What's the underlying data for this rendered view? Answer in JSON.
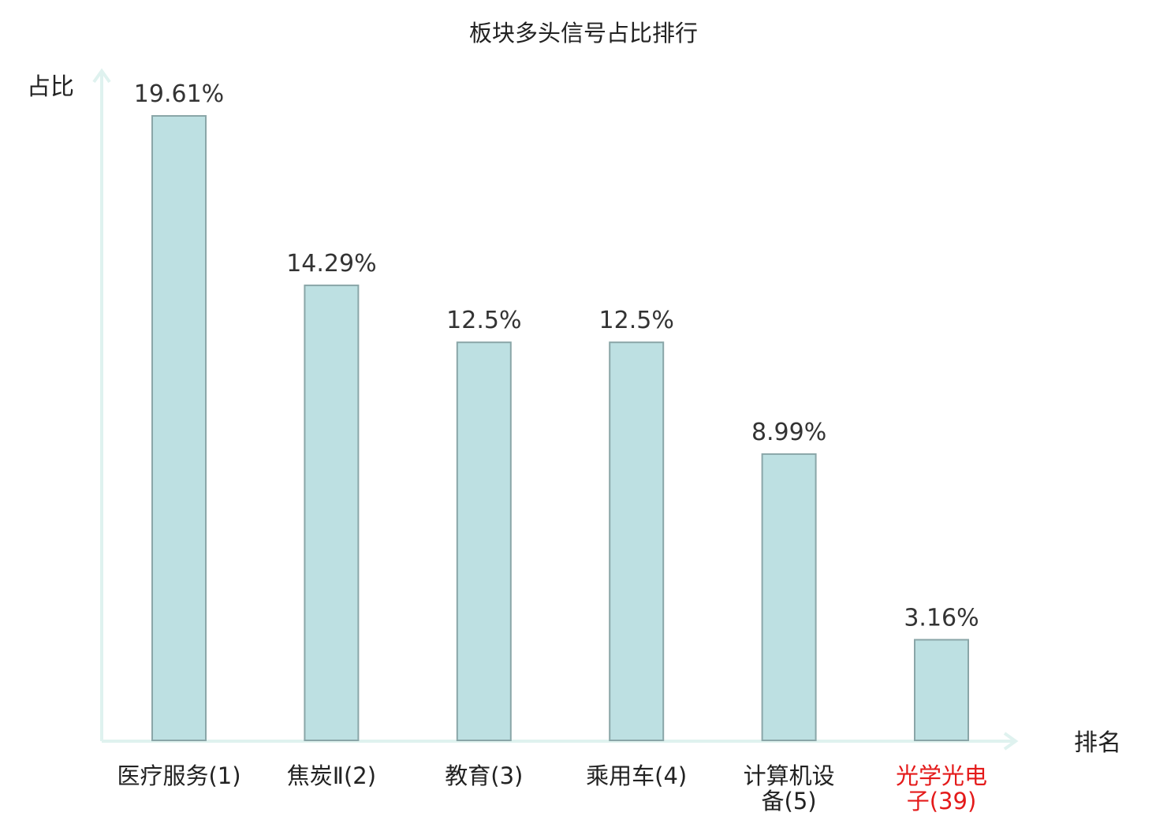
{
  "chart_data": {
    "type": "bar",
    "title": "板块多头信号占比排行",
    "xlabel": "排名",
    "ylabel": "占比",
    "categories": [
      "医疗服务(1)",
      "焦炭Ⅱ(2)",
      "教育(3)",
      "乘用车(4)",
      "计算机设备(5)",
      "光学光电子(39)"
    ],
    "category_lines": [
      [
        "医疗服务(1)"
      ],
      [
        "焦炭Ⅱ(2)"
      ],
      [
        "教育(3)"
      ],
      [
        "乘用车(4)"
      ],
      [
        "计算机设",
        "备(5)"
      ],
      [
        "光学光电",
        "子(39)"
      ]
    ],
    "values": [
      19.61,
      14.29,
      12.5,
      12.5,
      8.99,
      3.16
    ],
    "data_labels": [
      "19.61%",
      "14.29%",
      "12.5%",
      "12.5%",
      "8.99%",
      "3.16%"
    ],
    "unit": "%",
    "ylim": [
      0,
      20
    ],
    "grid": false,
    "legend": "none",
    "highlight_index": 5,
    "colors": {
      "bar_fill": "#bde0e2",
      "bar_stroke": "#8aa6a8",
      "axis": "#dff2ef",
      "label_normal": "#222222",
      "label_highlight": "#e41a1a"
    }
  }
}
